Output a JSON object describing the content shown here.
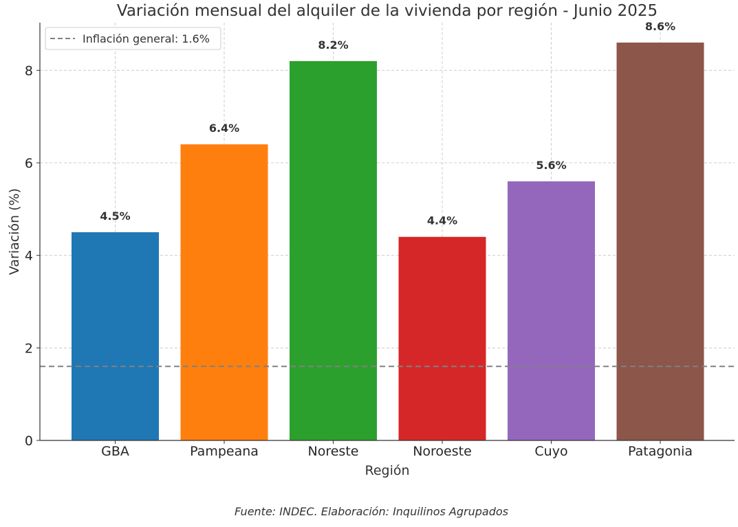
{
  "chart_data": {
    "type": "bar",
    "title": "Variación mensual del alquiler de la vivienda por región - Junio 2025",
    "xlabel": "Región",
    "ylabel": "Variación (%)",
    "categories": [
      "GBA",
      "Pampeana",
      "Noreste",
      "Noroeste",
      "Cuyo",
      "Patagonia"
    ],
    "values": [
      4.5,
      6.4,
      8.2,
      4.4,
      5.6,
      8.6
    ],
    "value_labels": [
      "4.5%",
      "6.4%",
      "8.2%",
      "4.4%",
      "5.6%",
      "8.6%"
    ],
    "colors": [
      "#1f77b4",
      "#ff7f0e",
      "#2ca02c",
      "#d62728",
      "#9467bd",
      "#8c564b"
    ],
    "ylim": [
      0,
      9.03
    ],
    "yticks": [
      0,
      2,
      4,
      6,
      8
    ],
    "grid": true,
    "reference_line": {
      "value": 1.6,
      "label": "Inflación general: 1.6%",
      "color": "#808080",
      "style": "dashed"
    },
    "legend": {
      "position": "top-left",
      "entries": [
        "Inflación general: 1.6%"
      ]
    },
    "source_note": "Fuente: INDEC. Elaboración: Inquilinos Agrupados"
  }
}
